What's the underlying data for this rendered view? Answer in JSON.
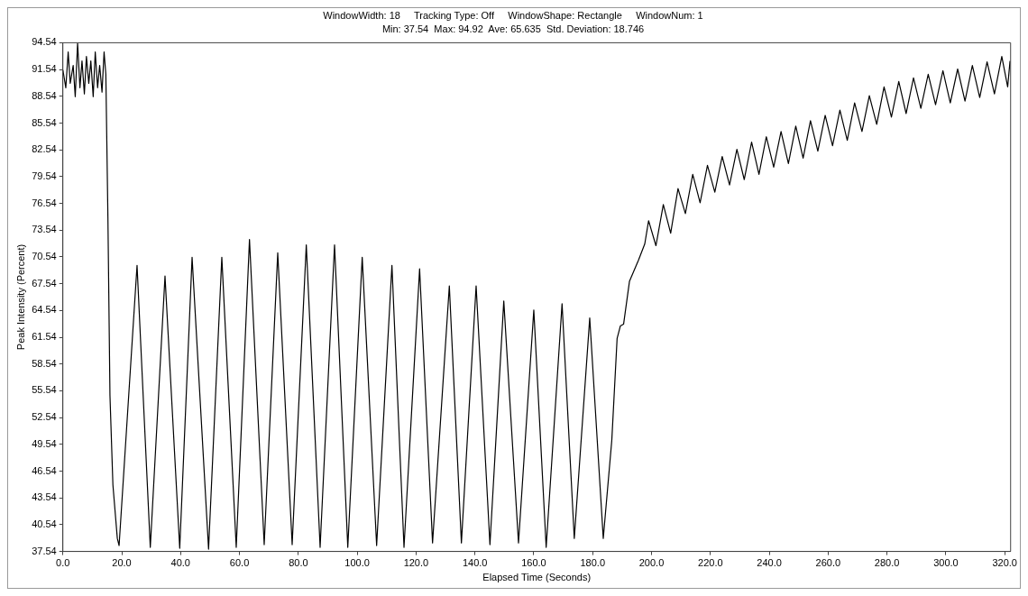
{
  "chart_data": {
    "type": "line",
    "title": "WindowWidth: 18     Tracking Type: Off     WindowShape: Rectangle     WindowNum: 1",
    "subtitle": "Min: 37.54  Max: 94.92  Ave: 65.635  Std. Deviation: 18.746",
    "xlabel": "Elapsed Time (Seconds)",
    "ylabel": "Peak Intensity (Percent)",
    "x": [
      0,
      1,
      1.8,
      2.5,
      3.5,
      4.2,
      5,
      5.8,
      6.5,
      7.3,
      8,
      8.8,
      9.5,
      10.3,
      11,
      11.8,
      12.5,
      13.3,
      14,
      14.6,
      15.3,
      16,
      17,
      18.5,
      19.1,
      25.2,
      29.7,
      34.7,
      39.7,
      43.9,
      49.5,
      54.0,
      58.9,
      63.4,
      68.4,
      73.0,
      77.9,
      82.7,
      87.4,
      92.3,
      96.8,
      101.7,
      106.6,
      111.8,
      115.9,
      121.2,
      125.6,
      131.3,
      135.4,
      140.4,
      145.1,
      149.8,
      154.8,
      160.0,
      164.2,
      169.6,
      173.75,
      179.0,
      183.6,
      186.5,
      188.3,
      189.4,
      190.5,
      192.5,
      195.6,
      197.7,
      199,
      201.5,
      204,
      206.5,
      209,
      211.5,
      214,
      216.5,
      219,
      221.5,
      224,
      226.5,
      229,
      231.5,
      234,
      236.5,
      239,
      241.5,
      244,
      246.5,
      249,
      251.5,
      254,
      256.5,
      259,
      261.5,
      264,
      266.5,
      269,
      271.5,
      274,
      276.5,
      279,
      281.5,
      284,
      286.5,
      289,
      291.5,
      294,
      296.5,
      299,
      301.5,
      304,
      306.5,
      309,
      311.5,
      314,
      316.5,
      319,
      321,
      321.8
    ],
    "series": [
      {
        "color": "#000000",
        "values": [
          91.5,
          89.5,
          93.5,
          90,
          92,
          88.5,
          94.5,
          89.5,
          92.5,
          88.8,
          93,
          90,
          92.5,
          88.5,
          93.5,
          89.5,
          92,
          89,
          93.5,
          91,
          75,
          55,
          45,
          39,
          38.2,
          69.6,
          38.0,
          68.4,
          37.9,
          70.5,
          37.8,
          70.5,
          38.0,
          72.5,
          38.3,
          71.0,
          38.3,
          71.9,
          38.0,
          71.9,
          38.0,
          70.5,
          38.2,
          69.6,
          38.0,
          69.2,
          38.5,
          67.3,
          38.5,
          67.3,
          38.3,
          65.6,
          38.5,
          64.6,
          38.0,
          65.3,
          39.0,
          63.7,
          39.0,
          50,
          61.4,
          62.8,
          63,
          67.8,
          70.2,
          72.0,
          74.6,
          71.8,
          76.4,
          73.2,
          78.2,
          75.4,
          79.8,
          76.6,
          80.8,
          77.8,
          81.8,
          78.6,
          82.6,
          79.2,
          83.4,
          79.8,
          84.0,
          80.6,
          84.6,
          81.0,
          85.2,
          81.6,
          85.8,
          82.4,
          86.4,
          83.0,
          87.0,
          83.6,
          87.8,
          84.6,
          88.6,
          85.4,
          89.6,
          86.2,
          90.2,
          86.6,
          90.6,
          87.2,
          91.0,
          87.6,
          91.4,
          87.8,
          91.6,
          88.0,
          92.0,
          88.4,
          92.4,
          88.8,
          93.0,
          89.6,
          92.5
        ]
      }
    ],
    "xlim": [
      0,
      322
    ],
    "xticks": [
      {
        "value": 0,
        "label": "0.0"
      },
      {
        "value": 20,
        "label": "20.0"
      },
      {
        "value": 40,
        "label": "40.0"
      },
      {
        "value": 60,
        "label": "60.0"
      },
      {
        "value": 80,
        "label": "80.0"
      },
      {
        "value": 100,
        "label": "100.0"
      },
      {
        "value": 120,
        "label": "120.0"
      },
      {
        "value": 140,
        "label": "140.0"
      },
      {
        "value": 160,
        "label": "160.0"
      },
      {
        "value": 180,
        "label": "180.0"
      },
      {
        "value": 200,
        "label": "200.0"
      },
      {
        "value": 220,
        "label": "220.0"
      },
      {
        "value": 240,
        "label": "240.0"
      },
      {
        "value": 260,
        "label": "260.0"
      },
      {
        "value": 280,
        "label": "280.0"
      },
      {
        "value": 300,
        "label": "300.0"
      },
      {
        "value": 320,
        "label": "320.0"
      }
    ],
    "ylim": [
      37.54,
      94.54
    ],
    "yticks": [
      37.54,
      40.54,
      43.54,
      46.54,
      49.54,
      52.54,
      55.54,
      58.54,
      61.54,
      64.54,
      67.54,
      70.54,
      73.54,
      76.54,
      79.54,
      82.54,
      85.54,
      88.54,
      91.54,
      94.54
    ],
    "grid": false,
    "legend": false,
    "marker": "none",
    "line_style": "solid"
  }
}
